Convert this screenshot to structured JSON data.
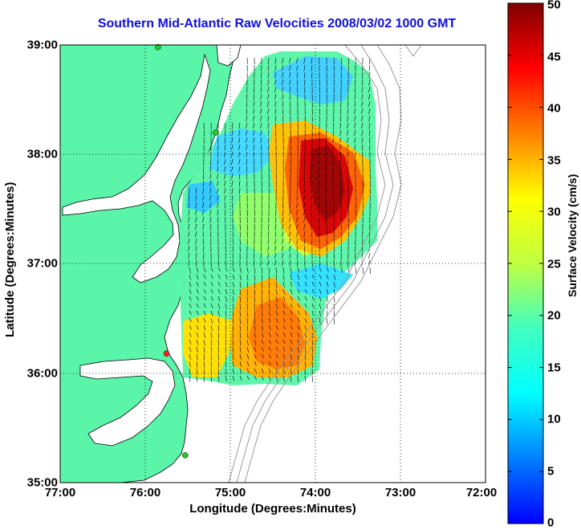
{
  "title": "Southern Mid-Atlantic Raw Velocities 2008/03/02 1000 GMT",
  "x_axis": {
    "label": "Longitude (Degrees:Minutes)",
    "ticks": [
      "77:00",
      "76:00",
      "75:00",
      "74:00",
      "73:00",
      "72:00"
    ]
  },
  "y_axis": {
    "label": "Latitude (Degrees:Minutes)",
    "ticks": [
      "39:00",
      "38:00",
      "37:00",
      "36:00",
      "35:00"
    ]
  },
  "colorbar": {
    "label": "Surface Velocity (cm/s)",
    "ticks": [
      "50",
      "45",
      "40",
      "35",
      "30",
      "25",
      "20",
      "15",
      "10",
      "5",
      "0"
    ],
    "min": 0,
    "max": 50,
    "colormap": "jet"
  },
  "map": {
    "extent": {
      "lon_west": -77,
      "lon_east": -72,
      "lat_south": 35,
      "lat_north": 39
    },
    "land_color": "#5af5a8",
    "water_color": "#ffffff",
    "grid": "dotted",
    "coastline_color": "#000000",
    "bathymetry_color": "#999999",
    "station_markers": [
      {
        "lon": -75.85,
        "lat": 38.98,
        "color": "#22cc22"
      },
      {
        "lon": -75.17,
        "lat": 38.2,
        "color": "#22cc22"
      },
      {
        "lon": -75.75,
        "lat": 36.18,
        "color": "#ff2020"
      },
      {
        "lon": -75.53,
        "lat": 35.25,
        "color": "#22cc22"
      }
    ]
  }
}
